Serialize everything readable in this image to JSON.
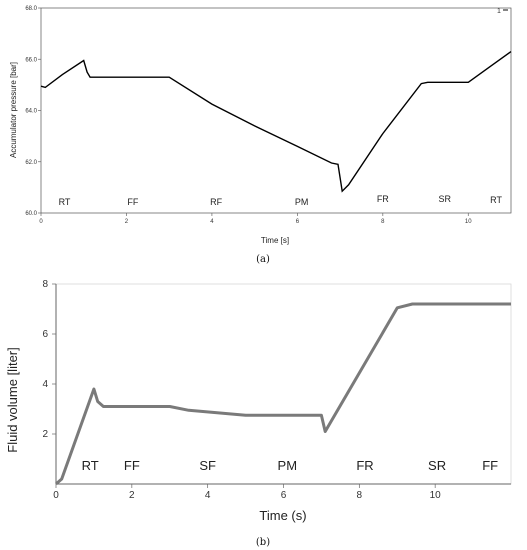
{
  "chart_data": [
    {
      "type": "line",
      "panel": "(a)",
      "xlabel": "Time [s]",
      "ylabel": "Accumulator pressure [bar]",
      "xlim": [
        0,
        11
      ],
      "ylim": [
        60.0,
        68.0
      ],
      "xticks": [
        "0",
        "2",
        "4",
        "6",
        "8",
        "10"
      ],
      "yticks": [
        "60.0",
        "62.0",
        "64.0",
        "66.0",
        "68.0"
      ],
      "grid": false,
      "phases": [
        {
          "label": "RT",
          "x": 0.55
        },
        {
          "label": "FF",
          "x": 2.15
        },
        {
          "label": "RF",
          "x": 4.1
        },
        {
          "label": "PM",
          "x": 6.1
        },
        {
          "label": "FR",
          "x": 8.0
        },
        {
          "label": "SR",
          "x": 9.45
        },
        {
          "label": "RT",
          "x": 10.65
        }
      ],
      "series": [
        {
          "x": [
            0,
            0.1,
            0.5,
            1.0,
            1.08,
            1.15,
            3.0,
            4.0,
            5.0,
            6.0,
            6.8,
            6.95,
            7.05,
            7.2,
            8.0,
            8.9,
            9.05,
            10.0,
            10.5,
            11.0
          ],
          "y": [
            64.95,
            64.9,
            65.4,
            65.95,
            65.5,
            65.3,
            65.3,
            64.25,
            63.4,
            62.6,
            61.95,
            61.9,
            60.85,
            61.1,
            63.1,
            65.05,
            65.1,
            65.1,
            65.7,
            66.3
          ]
        }
      ]
    },
    {
      "type": "line",
      "panel": "(b)",
      "xlabel": "Time (s)",
      "ylabel": "Fluid volume [liter]",
      "xlim": [
        0,
        12
      ],
      "ylim": [
        0,
        8
      ],
      "xticks": [
        "0",
        "2",
        "4",
        "6",
        "8",
        "10"
      ],
      "yticks": [
        "2",
        "4",
        "6",
        "8"
      ],
      "grid": false,
      "phases": [
        {
          "label": "RT",
          "x": 0.9
        },
        {
          "label": "FF",
          "x": 2.0
        },
        {
          "label": "SF",
          "x": 4.0
        },
        {
          "label": "PM",
          "x": 6.1
        },
        {
          "label": "FR",
          "x": 8.15
        },
        {
          "label": "SR",
          "x": 10.05
        },
        {
          "label": "FF",
          "x": 11.45
        }
      ],
      "series": [
        {
          "x": [
            0,
            0.15,
            1.0,
            1.1,
            1.25,
            3.0,
            3.5,
            5.0,
            7.0,
            7.1,
            9.0,
            9.4,
            12.0
          ],
          "y": [
            0,
            0.2,
            3.8,
            3.3,
            3.1,
            3.1,
            2.95,
            2.75,
            2.75,
            2.1,
            7.05,
            7.2,
            7.2
          ]
        }
      ]
    }
  ],
  "captions": [
    "(a)",
    "(b)"
  ],
  "corner_mark": "1"
}
